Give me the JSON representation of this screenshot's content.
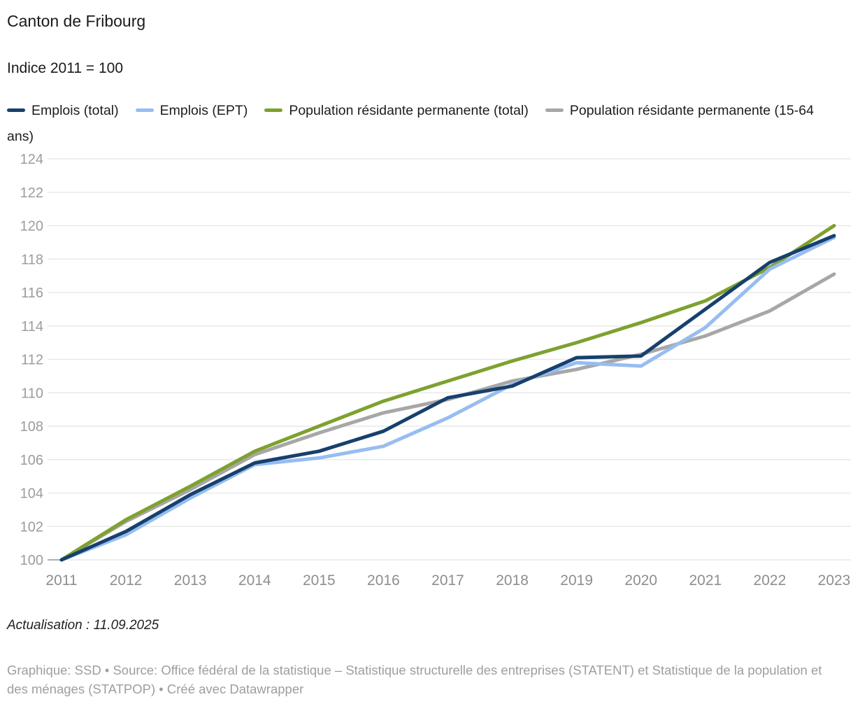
{
  "header": {
    "title": "Canton de Fribourg",
    "subtitle": "Indice 2011 = 100"
  },
  "chart_data": {
    "type": "line",
    "x": [
      2011,
      2012,
      2013,
      2014,
      2015,
      2016,
      2017,
      2018,
      2019,
      2020,
      2021,
      2022,
      2023
    ],
    "series": [
      {
        "name": "Emplois (total)",
        "color": "#17406d",
        "values": [
          100,
          101.7,
          103.9,
          105.8,
          106.5,
          107.7,
          109.7,
          110.4,
          112.1,
          112.2,
          115.0,
          117.8,
          119.4
        ]
      },
      {
        "name": "Emplois (EPT)",
        "color": "#97bdf1",
        "values": [
          100,
          101.5,
          103.7,
          105.7,
          106.1,
          106.8,
          108.5,
          110.5,
          111.8,
          111.6,
          113.9,
          117.4,
          119.3
        ]
      },
      {
        "name": "Population résidante permanente (total)",
        "color": "#7ea12f",
        "values": [
          100,
          102.4,
          104.4,
          106.5,
          108.0,
          109.5,
          110.7,
          111.9,
          113.0,
          114.2,
          115.5,
          117.5,
          120.0
        ]
      },
      {
        "name": "Population résidante permanente (15-64 ans)",
        "color": "#a7a7a7",
        "values": [
          100,
          102.3,
          104.2,
          106.3,
          107.6,
          108.8,
          109.6,
          110.7,
          111.4,
          112.3,
          113.4,
          114.9,
          117.1
        ]
      }
    ],
    "ylim": [
      100,
      124
    ],
    "ytick_step": 2,
    "grid": "horizontal",
    "legend_position": "top",
    "title": "Canton de Fribourg",
    "subtitle": "Indice 2011 = 100"
  },
  "colors": {
    "grid": "#e9e9e9",
    "baseline_tick": "#9a9a9a",
    "y_axis_text": "#9c9c9c",
    "x_axis_text": "#8e8e8e",
    "title_text": "#1a1a1a",
    "legend_text": "#1d1d1d",
    "footer_text": "#9e9e9e"
  },
  "footer": {
    "update_note": "Actualisation : 11.09.2025",
    "source_note": "Graphique: SSD • Source: Office fédéral de la statistique – Statistique structurelle des entreprises (STATENT) et Statistique de la population et des ménages (STATPOP) • Créé avec Datawrapper"
  }
}
